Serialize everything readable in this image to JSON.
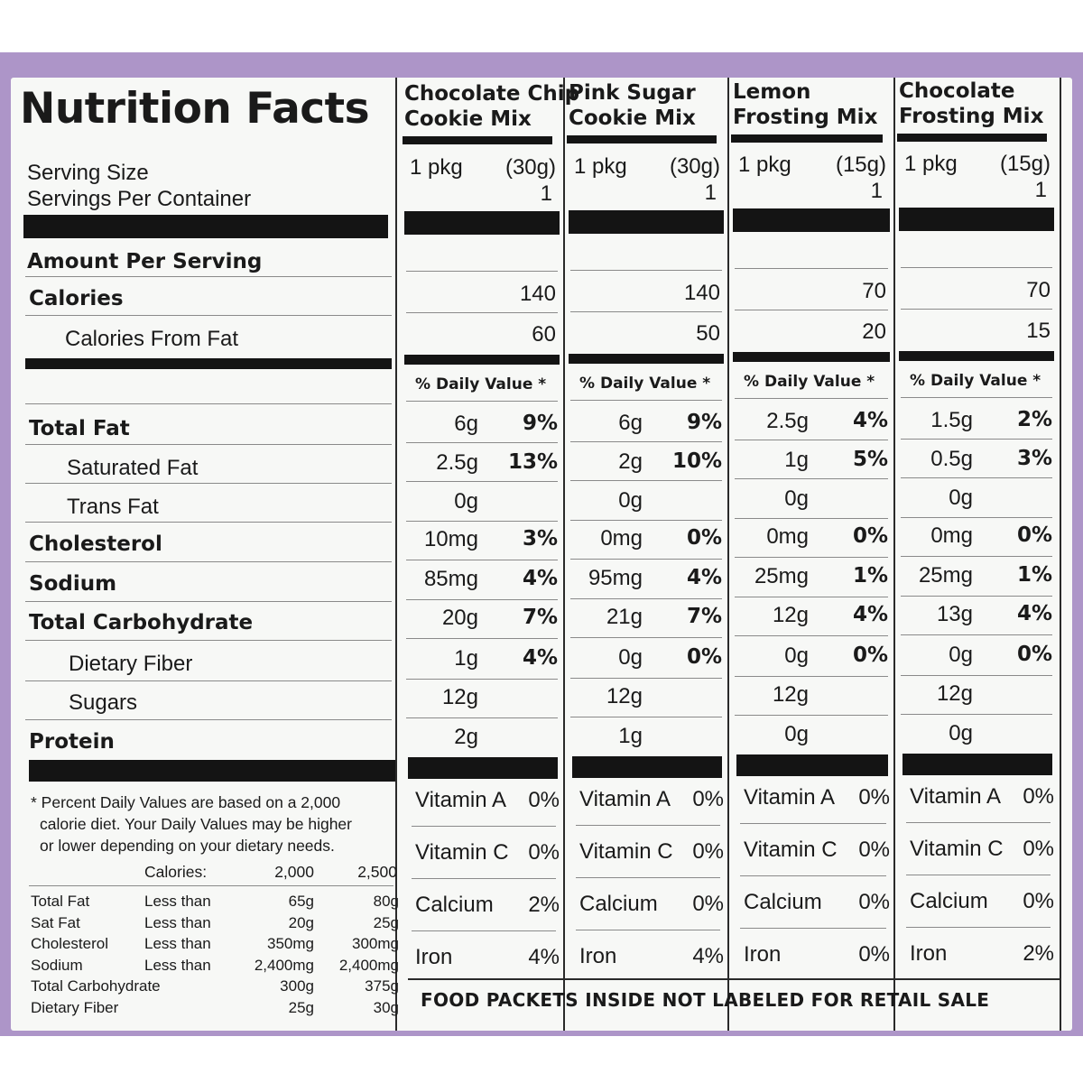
{
  "title": "Nutrition Facts",
  "labels": {
    "serving_size": "Serving Size",
    "servings_per_container": "Servings Per Container",
    "amount_per_serving": "Amount Per Serving",
    "calories": "Calories",
    "calories_from_fat": "Calories From Fat",
    "total_fat": "Total Fat",
    "saturated_fat": "Saturated Fat",
    "trans_fat": "Trans Fat",
    "cholesterol": "Cholesterol",
    "sodium": "Sodium",
    "total_carbohydrate": "Total Carbohydrate",
    "dietary_fiber": "Dietary Fiber",
    "sugars": "Sugars",
    "protein": "Protein",
    "daily_value": "% Daily Value *"
  },
  "products": [
    {
      "name_line1": "Chocolate Chip",
      "name_line2": "Cookie Mix",
      "serving_qty": "1 pkg",
      "serving_weight": "(30g)",
      "servings": "1",
      "calories": "140",
      "calories_from_fat": "60",
      "total_fat": "6g",
      "total_fat_dv": "9%",
      "sat_fat": "2.5g",
      "sat_fat_dv": "13%",
      "trans_fat": "0g",
      "cholesterol": "10mg",
      "cholesterol_dv": "3%",
      "sodium": "85mg",
      "sodium_dv": "4%",
      "carb": "20g",
      "carb_dv": "7%",
      "fiber": "1g",
      "fiber_dv": "4%",
      "sugars": "12g",
      "protein": "2g",
      "vit_a_label": "Vitamin A",
      "vit_a": "0%",
      "vit_c_label": "Vitamin C",
      "vit_c": "0%",
      "calcium_label": "Calcium",
      "calcium": "2%",
      "iron_label": "Iron",
      "iron": "4%"
    },
    {
      "name_line1": "Pink Sugar",
      "name_line2": "Cookie Mix",
      "serving_qty": "1 pkg",
      "serving_weight": "(30g)",
      "servings": "1",
      "calories": "140",
      "calories_from_fat": "50",
      "total_fat": "6g",
      "total_fat_dv": "9%",
      "sat_fat": "2g",
      "sat_fat_dv": "10%",
      "trans_fat": "0g",
      "cholesterol": "0mg",
      "cholesterol_dv": "0%",
      "sodium": "95mg",
      "sodium_dv": "4%",
      "carb": "21g",
      "carb_dv": "7%",
      "fiber": "0g",
      "fiber_dv": "0%",
      "sugars": "12g",
      "protein": "1g",
      "vit_a_label": "Vitamin A",
      "vit_a": "0%",
      "vit_c_label": "Vitamin C",
      "vit_c": "0%",
      "calcium_label": "Calcium",
      "calcium": "0%",
      "iron_label": "Iron",
      "iron": "4%"
    },
    {
      "name_line1": "Lemon",
      "name_line2": "Frosting Mix",
      "serving_qty": "1 pkg",
      "serving_weight": "(15g)",
      "servings": "1",
      "calories": "70",
      "calories_from_fat": "20",
      "total_fat": "2.5g",
      "total_fat_dv": "4%",
      "sat_fat": "1g",
      "sat_fat_dv": "5%",
      "trans_fat": "0g",
      "cholesterol": "0mg",
      "cholesterol_dv": "0%",
      "sodium": "25mg",
      "sodium_dv": "1%",
      "carb": "12g",
      "carb_dv": "4%",
      "fiber": "0g",
      "fiber_dv": "0%",
      "sugars": "12g",
      "protein": "0g",
      "vit_a_label": "Vitamin A",
      "vit_a": "0%",
      "vit_c_label": "Vitamin C",
      "vit_c": "0%",
      "calcium_label": "Calcium",
      "calcium": "0%",
      "iron_label": "Iron",
      "iron": "0%"
    },
    {
      "name_line1": "Chocolate",
      "name_line2": "Frosting Mix",
      "serving_qty": "1 pkg",
      "serving_weight": "(15g)",
      "servings": "1",
      "calories": "70",
      "calories_from_fat": "15",
      "total_fat": "1.5g",
      "total_fat_dv": "2%",
      "sat_fat": "0.5g",
      "sat_fat_dv": "3%",
      "trans_fat": "0g",
      "cholesterol": "0mg",
      "cholesterol_dv": "0%",
      "sodium": "25mg",
      "sodium_dv": "1%",
      "carb": "13g",
      "carb_dv": "4%",
      "fiber": "0g",
      "fiber_dv": "0%",
      "sugars": "12g",
      "protein": "0g",
      "vit_a_label": "Vitamin A",
      "vit_a": "0%",
      "vit_c_label": "Vitamin C",
      "vit_c": "0%",
      "calcium_label": "Calcium",
      "calcium": "0%",
      "iron_label": "Iron",
      "iron": "2%"
    }
  ],
  "footnote": {
    "line1": "* Percent Daily Values are based on a 2,000",
    "line2": "calorie diet. Your Daily Values may be higher",
    "line3": "or lower depending on your dietary needs.",
    "calories_label": "Calories:",
    "col_2000": "2,000",
    "col_2500": "2,500",
    "rows": [
      {
        "nutrient": "Total Fat",
        "limit": "Less than",
        "v2000": "65g",
        "v2500": "80g"
      },
      {
        "nutrient": "Sat Fat",
        "limit": "Less than",
        "v2000": "20g",
        "v2500": "25g"
      },
      {
        "nutrient": "Cholesterol",
        "limit": "Less than",
        "v2000": "350mg",
        "v2500": "300mg"
      },
      {
        "nutrient": "Sodium",
        "limit": "Less than",
        "v2000": "2,400mg",
        "v2500": "2,400mg"
      },
      {
        "nutrient": "Total Carbohydrate",
        "limit": "",
        "v2000": "300g",
        "v2500": "375g"
      },
      {
        "nutrient": "Dietary Fiber",
        "limit": "",
        "v2000": "25g",
        "v2500": "30g"
      }
    ]
  },
  "retail_notice": "FOOD PACKETS INSIDE NOT LABELED FOR RETAIL SALE",
  "colors": {
    "panel": "#ad95c8",
    "label_bg": "#f7f8f6",
    "ink": "#141414"
  }
}
